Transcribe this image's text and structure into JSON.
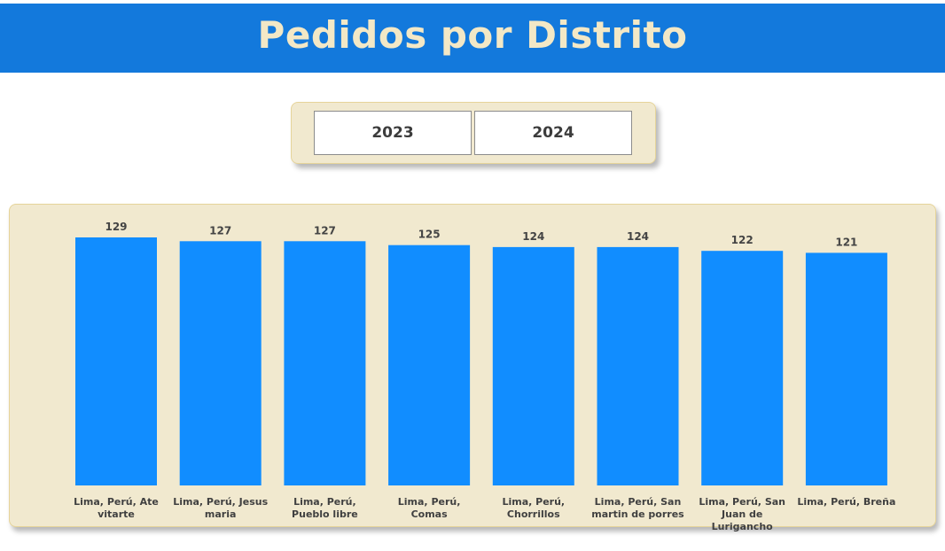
{
  "header": {
    "title": "Pedidos por Distrito"
  },
  "year_selector": {
    "buttons": [
      "2023",
      "2024"
    ]
  },
  "colors": {
    "header_bg": "#1379dc",
    "header_text": "#f3e8c6",
    "panel_bg": "#f1e9cf",
    "bar": "#118dff"
  },
  "chart_data": {
    "type": "bar",
    "title": "",
    "xlabel": "",
    "ylabel": "",
    "categories": [
      "Lima, Perú, Ate vitarte",
      "Lima, Perú, Jesus maria",
      "Lima, Perú, Pueblo libre",
      "Lima, Perú, Comas",
      "Lima, Perú, Chorrillos",
      "Lima, Perú, San martin de porres",
      "Lima, Perú, San Juan de Lurigancho",
      "Lima, Perú, Breña"
    ],
    "values": [
      129,
      127,
      127,
      125,
      124,
      124,
      122,
      121
    ],
    "ylim": [
      0,
      129
    ],
    "grid": false,
    "data_labels": true
  }
}
